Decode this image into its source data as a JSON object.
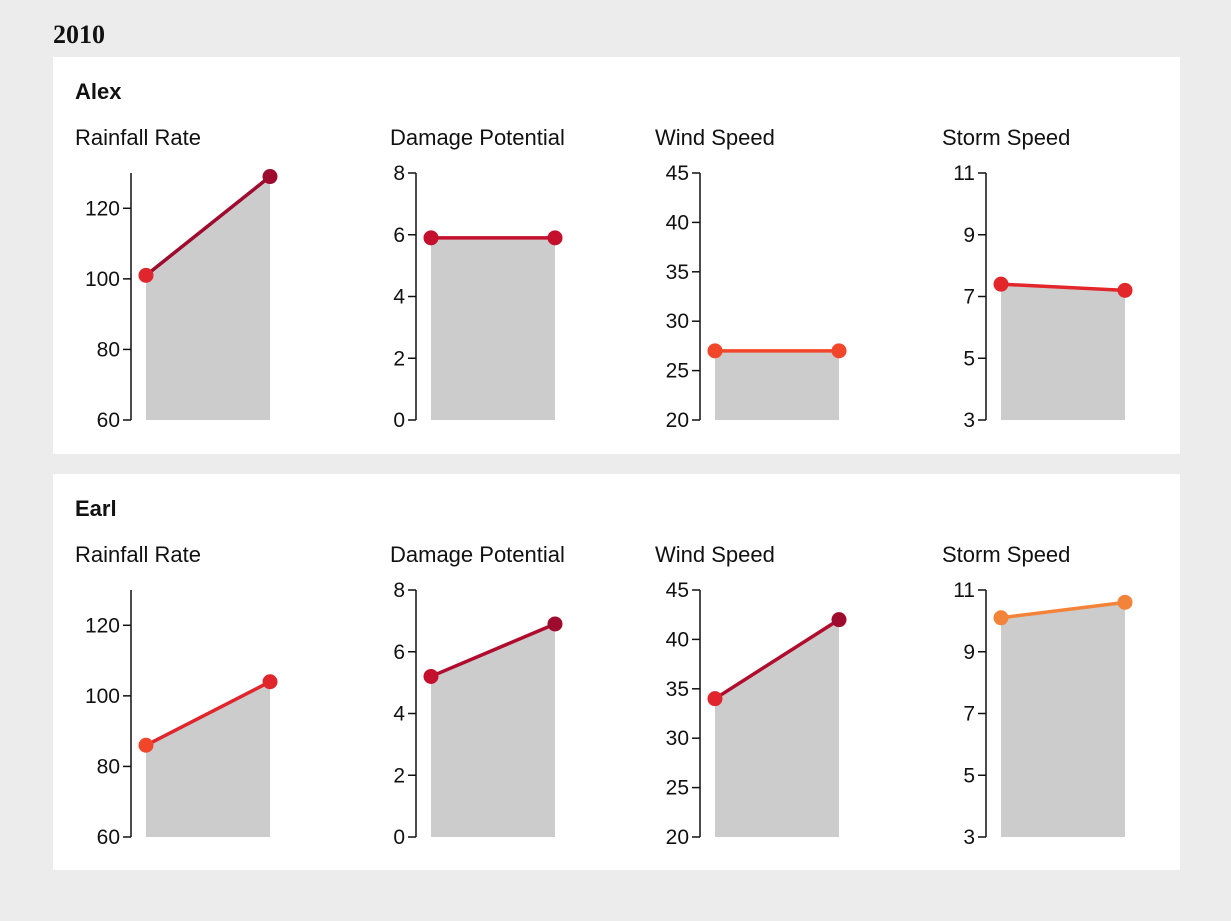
{
  "year": "2010",
  "storms": [
    {
      "name": "Alex",
      "charts": [
        {
          "title": "Rainfall Rate",
          "ticks": [
            "60",
            "80",
            "100",
            "120"
          ],
          "ylim": [
            60,
            130
          ],
          "values": [
            101,
            129
          ],
          "color": "#9e0b2e",
          "point_colors": [
            "#e0252c",
            "#9e0b2e"
          ]
        },
        {
          "title": "Damage Potential",
          "ticks": [
            "0",
            "2",
            "4",
            "6",
            "8"
          ],
          "ylim": [
            0,
            8
          ],
          "values": [
            5.9,
            5.9
          ],
          "color": "#c40f2d",
          "point_colors": [
            "#c40f2d",
            "#c40f2d"
          ]
        },
        {
          "title": "Wind Speed",
          "ticks": [
            "20",
            "25",
            "30",
            "35",
            "40",
            "45"
          ],
          "ylim": [
            20,
            45
          ],
          "values": [
            27,
            27
          ],
          "color": "#f2462b",
          "point_colors": [
            "#f2462b",
            "#f2462b"
          ]
        },
        {
          "title": "Storm Speed",
          "ticks": [
            "3",
            "5",
            "7",
            "9",
            "11"
          ],
          "ylim": [
            3,
            11
          ],
          "values": [
            7.4,
            7.2
          ],
          "color": "#e3262a",
          "point_colors": [
            "#e3262a",
            "#e3262a"
          ]
        }
      ]
    },
    {
      "name": "Earl",
      "charts": [
        {
          "title": "Rainfall Rate",
          "ticks": [
            "60",
            "80",
            "100",
            "120"
          ],
          "ylim": [
            60,
            130
          ],
          "values": [
            86,
            104
          ],
          "color": "#e0252c",
          "point_colors": [
            "#f2462b",
            "#e0252c"
          ]
        },
        {
          "title": "Damage Potential",
          "ticks": [
            "0",
            "2",
            "4",
            "6",
            "8"
          ],
          "ylim": [
            0,
            8
          ],
          "values": [
            5.2,
            6.9
          ],
          "color": "#b10c2d",
          "point_colors": [
            "#c40f2d",
            "#9e0b2e"
          ]
        },
        {
          "title": "Wind Speed",
          "ticks": [
            "20",
            "25",
            "30",
            "35",
            "40",
            "45"
          ],
          "ylim": [
            20,
            45
          ],
          "values": [
            34,
            42
          ],
          "color": "#b10c2d",
          "point_colors": [
            "#e0252c",
            "#9e0b2e"
          ]
        },
        {
          "title": "Storm Speed",
          "ticks": [
            "3",
            "5",
            "7",
            "9",
            "11"
          ],
          "ylim": [
            3,
            11
          ],
          "values": [
            10.1,
            10.6
          ],
          "color": "#f4833a",
          "point_colors": [
            "#f4833a",
            "#f4833a"
          ]
        }
      ]
    }
  ],
  "chart_data": [
    {
      "type": "area",
      "title": "Alex — Rainfall Rate",
      "x": [
        1,
        2
      ],
      "values": [
        101,
        129
      ],
      "ylim": [
        60,
        130
      ],
      "fill_color": "#cccccc"
    },
    {
      "type": "area",
      "title": "Alex — Damage Potential",
      "x": [
        1,
        2
      ],
      "values": [
        5.9,
        5.9
      ],
      "ylim": [
        0,
        8
      ],
      "fill_color": "#cccccc"
    },
    {
      "type": "area",
      "title": "Alex — Wind Speed",
      "x": [
        1,
        2
      ],
      "values": [
        27,
        27
      ],
      "ylim": [
        20,
        45
      ],
      "fill_color": "#cccccc"
    },
    {
      "type": "area",
      "title": "Alex — Storm Speed",
      "x": [
        1,
        2
      ],
      "values": [
        7.4,
        7.2
      ],
      "ylim": [
        3,
        11
      ],
      "fill_color": "#cccccc"
    },
    {
      "type": "area",
      "title": "Earl — Rainfall Rate",
      "x": [
        1,
        2
      ],
      "values": [
        86,
        104
      ],
      "ylim": [
        60,
        130
      ],
      "fill_color": "#cccccc"
    },
    {
      "type": "area",
      "title": "Earl — Damage Potential",
      "x": [
        1,
        2
      ],
      "values": [
        5.2,
        6.9
      ],
      "ylim": [
        0,
        8
      ],
      "fill_color": "#cccccc"
    },
    {
      "type": "area",
      "title": "Earl — Wind Speed",
      "x": [
        1,
        2
      ],
      "values": [
        34,
        42
      ],
      "ylim": [
        20,
        45
      ],
      "fill_color": "#cccccc"
    },
    {
      "type": "area",
      "title": "Earl — Storm Speed",
      "x": [
        1,
        2
      ],
      "values": [
        10.1,
        10.6
      ],
      "ylim": [
        3,
        11
      ],
      "fill_color": "#cccccc"
    }
  ]
}
